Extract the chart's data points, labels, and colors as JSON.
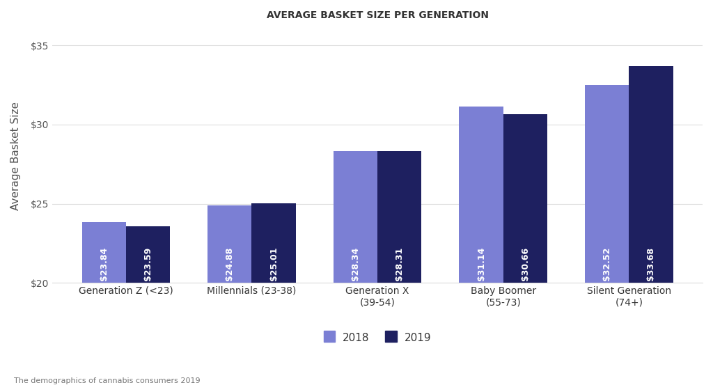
{
  "title": "AVERAGE BASKET SIZE PER GENERATION",
  "ylabel": "Average Basket Size",
  "footnote": "The demographics of cannabis consumers 2019",
  "categories": [
    "Generation Z (<23)",
    "Millennials (23-38)",
    "Generation X\n(39-54)",
    "Baby Boomer\n(55-73)",
    "Silent Generation\n(74+)"
  ],
  "values_2018": [
    23.84,
    24.88,
    28.34,
    31.14,
    32.52
  ],
  "values_2019": [
    23.59,
    25.01,
    28.31,
    30.66,
    33.68
  ],
  "labels_2018": [
    "$23.84",
    "$24.88",
    "$28.34",
    "$31.14",
    "$32.52"
  ],
  "labels_2019": [
    "$23.59",
    "$25.01",
    "$28.31",
    "$30.66",
    "$33.68"
  ],
  "color_2018": "#7B7FD4",
  "color_2019": "#1E2060",
  "background_color": "#FFFFFF",
  "grid_color": "#DDDDDD",
  "ylim_min": 20,
  "ylim_max": 36,
  "yticks": [
    20,
    25,
    30,
    35
  ],
  "ytick_labels": [
    "$20",
    "$25",
    "$30",
    "$35"
  ],
  "bar_width": 0.35,
  "title_fontsize": 10,
  "axis_label_fontsize": 11,
  "tick_fontsize": 10,
  "value_label_fontsize": 9,
  "legend_fontsize": 11,
  "footnote_fontsize": 8
}
